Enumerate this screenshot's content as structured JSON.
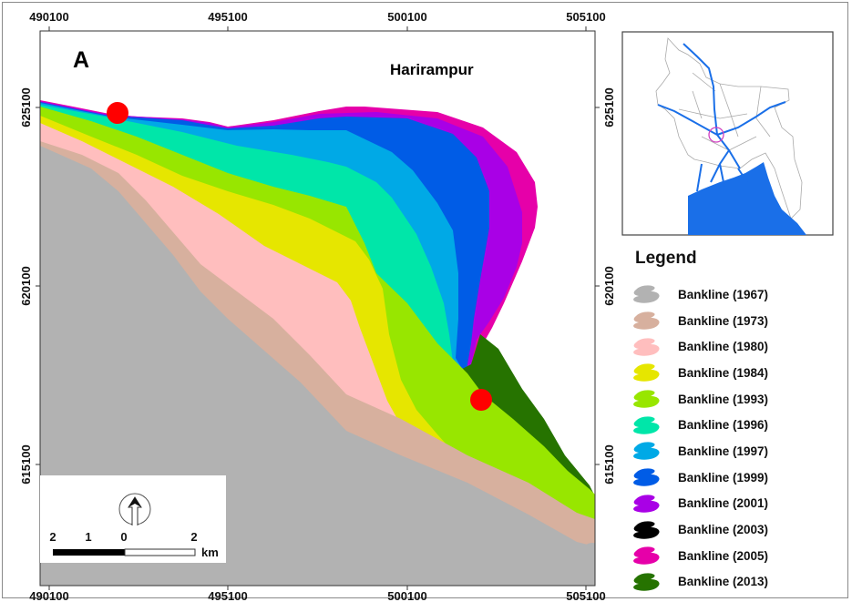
{
  "map": {
    "panel_label": "A",
    "place_label": "Harirampur",
    "x_ticks": [
      "490100",
      "495100",
      "500100",
      "505100"
    ],
    "y_ticks": [
      "625100",
      "620100",
      "615100"
    ],
    "markers_color": "#ff0000"
  },
  "scale_bar": {
    "labels": [
      "2",
      "1",
      "0",
      "2"
    ],
    "unit": "km"
  },
  "north_arrow": "north-arrow-icon",
  "inset": {
    "river_color": "#1a6fe8",
    "highlight_color": "#d040c0"
  },
  "legend": {
    "title": "Legend",
    "items": [
      {
        "label": "Bankline (1967)",
        "color": "#b2b2b2"
      },
      {
        "label": "Bankline (1973)",
        "color": "#d7b09e"
      },
      {
        "label": "Bankline (1980)",
        "color": "#ffbebe"
      },
      {
        "label": "Bankline (1984)",
        "color": "#e6e600"
      },
      {
        "label": "Bankline (1993)",
        "color": "#98e600"
      },
      {
        "label": "Bankline (1996)",
        "color": "#00e6a9"
      },
      {
        "label": "Bankline (1997)",
        "color": "#00a9e6"
      },
      {
        "label": "Bankline (1999)",
        "color": "#005ce6"
      },
      {
        "label": "Bankline (2001)",
        "color": "#a900e6"
      },
      {
        "label": "Bankline (2003)",
        "color": "#000000"
      },
      {
        "label": "Bankline (2005)",
        "color": "#e600a9"
      },
      {
        "label": "Bankline (2013)",
        "color": "#267300"
      }
    ]
  }
}
